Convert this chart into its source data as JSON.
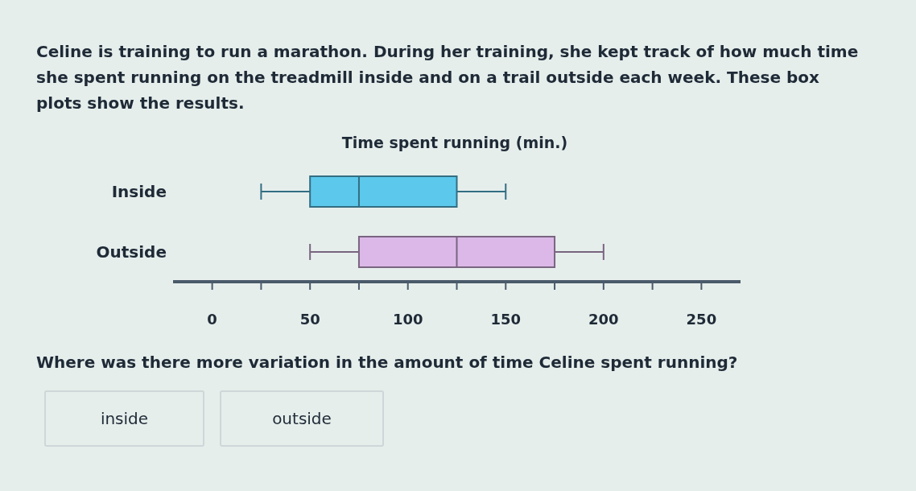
{
  "chart_data": {
    "type": "box",
    "orientation": "horizontal",
    "title": "Time spent running (min.)",
    "categories": [
      "Inside",
      "Outside"
    ],
    "boxes": [
      {
        "low": 25,
        "q1": 50,
        "median": 75,
        "q3": 125,
        "high": 150
      },
      {
        "low": 50,
        "q1": 75,
        "median": 125,
        "q3": 175,
        "high": 200
      }
    ],
    "colors": [
      "#5cc8ec",
      "#dcb8e8"
    ],
    "xlim": [
      -20,
      270
    ],
    "xticks": [
      0,
      {
        "value": 25,
        "label": null
      },
      50,
      {
        "value": 75,
        "label": null
      },
      100,
      {
        "value": 125,
        "label": null
      },
      150,
      {
        "value": 175,
        "label": null
      },
      200,
      {
        "value": 225,
        "label": null
      },
      250
    ],
    "annotations": [
      "Celine is training to run a marathon. During her training, she kept track of how much time she spent running on the treadmill inside and on a trail outside each week. These box plots show the results.",
      "Where was there more variation in the amount of time Celine spent running?",
      "inside",
      "outside"
    ]
  }
}
